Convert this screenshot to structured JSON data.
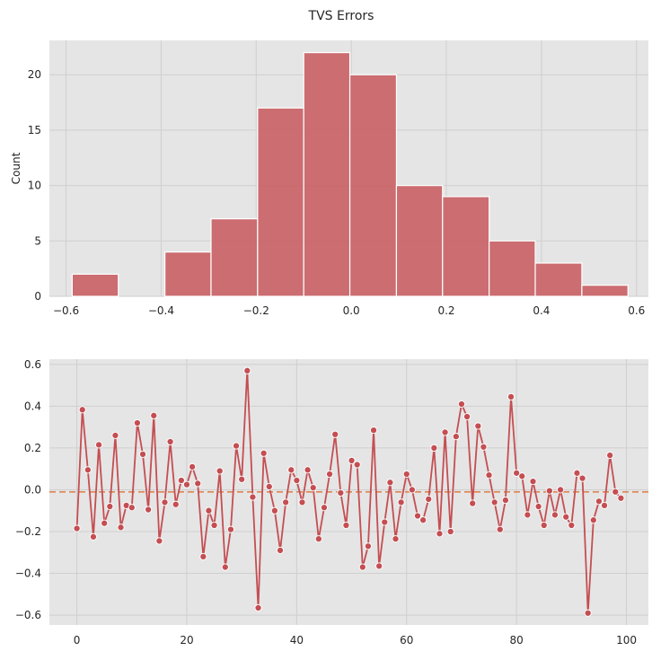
{
  "figure": {
    "title": "TVS Errors",
    "background": "#ffffff",
    "axes_face": "#e5e5e5",
    "grid_color": "#cfcfcf",
    "bar_color": "#c95f64",
    "line_color": "#c44e52",
    "mean_line_color": "#dd8452"
  },
  "chart_data": [
    {
      "type": "bar",
      "subtype": "histogram",
      "title": "",
      "xlabel": "",
      "ylabel": "Count",
      "xlim": [
        -0.635,
        0.625
      ],
      "ylim": [
        0,
        23.1
      ],
      "xticks": [
        -0.6,
        -0.4,
        -0.2,
        0.0,
        0.2,
        0.4,
        0.6
      ],
      "xtick_labels": [
        "−0.6",
        "−0.4",
        "−0.2",
        "0.0",
        "0.2",
        "0.4",
        "0.6"
      ],
      "yticks": [
        0,
        5,
        10,
        15,
        20
      ],
      "ytick_labels": [
        "0",
        "5",
        "10",
        "15",
        "20"
      ],
      "grid": true,
      "bins": [
        {
          "x0": -0.587,
          "x1": -0.49,
          "count": 2
        },
        {
          "x0": -0.49,
          "x1": -0.392,
          "count": 0
        },
        {
          "x0": -0.392,
          "x1": -0.295,
          "count": 4
        },
        {
          "x0": -0.295,
          "x1": -0.197,
          "count": 7
        },
        {
          "x0": -0.197,
          "x1": -0.1,
          "count": 17
        },
        {
          "x0": -0.1,
          "x1": -0.003,
          "count": 22
        },
        {
          "x0": -0.003,
          "x1": 0.095,
          "count": 20
        },
        {
          "x0": 0.095,
          "x1": 0.192,
          "count": 10
        },
        {
          "x0": 0.192,
          "x1": 0.29,
          "count": 9
        },
        {
          "x0": 0.29,
          "x1": 0.387,
          "count": 5
        },
        {
          "x0": 0.387,
          "x1": 0.485,
          "count": 3
        },
        {
          "x0": 0.485,
          "x1": 0.582,
          "count": 1
        }
      ]
    },
    {
      "type": "line",
      "title": "",
      "xlabel": "",
      "ylabel": "",
      "xlim": [
        -5,
        104
      ],
      "ylim": [
        -0.647,
        0.625
      ],
      "xticks": [
        0,
        20,
        40,
        60,
        80,
        100
      ],
      "xtick_labels": [
        "0",
        "20",
        "40",
        "60",
        "80",
        "100"
      ],
      "yticks": [
        -0.6,
        -0.4,
        -0.2,
        0.0,
        0.2,
        0.4,
        0.6
      ],
      "ytick_labels": [
        "−0.6",
        "−0.4",
        "−0.2",
        "0.0",
        "0.2",
        "0.4",
        "0.6"
      ],
      "grid": true,
      "markers": true,
      "mean_line": -0.01,
      "series": [
        {
          "values": [
            -0.185,
            0.383,
            0.095,
            -0.225,
            0.215,
            -0.16,
            -0.08,
            0.26,
            -0.18,
            -0.075,
            -0.085,
            0.32,
            0.17,
            -0.095,
            0.355,
            -0.245,
            -0.06,
            0.23,
            -0.07,
            0.045,
            0.025,
            0.11,
            0.03,
            -0.32,
            -0.1,
            -0.17,
            0.09,
            -0.37,
            -0.19,
            0.21,
            0.05,
            0.57,
            -0.035,
            -0.565,
            0.175,
            0.015,
            -0.1,
            -0.29,
            -0.06,
            0.095,
            0.045,
            -0.06,
            0.095,
            0.01,
            -0.235,
            -0.085,
            0.075,
            0.265,
            -0.015,
            -0.17,
            0.14,
            0.12,
            -0.37,
            -0.27,
            0.285,
            -0.365,
            -0.155,
            0.035,
            -0.235,
            -0.06,
            0.075,
            0.0,
            -0.125,
            -0.145,
            -0.045,
            0.2,
            -0.21,
            0.275,
            -0.2,
            0.255,
            0.41,
            0.35,
            -0.065,
            0.305,
            0.205,
            0.07,
            -0.06,
            -0.19,
            -0.05,
            0.445,
            0.08,
            0.065,
            -0.12,
            0.04,
            -0.08,
            -0.17,
            -0.005,
            -0.12,
            0.0,
            -0.13,
            -0.17,
            0.08,
            0.055,
            -0.59,
            -0.145,
            -0.055,
            -0.075,
            0.165,
            -0.01,
            -0.04
          ]
        }
      ]
    }
  ]
}
